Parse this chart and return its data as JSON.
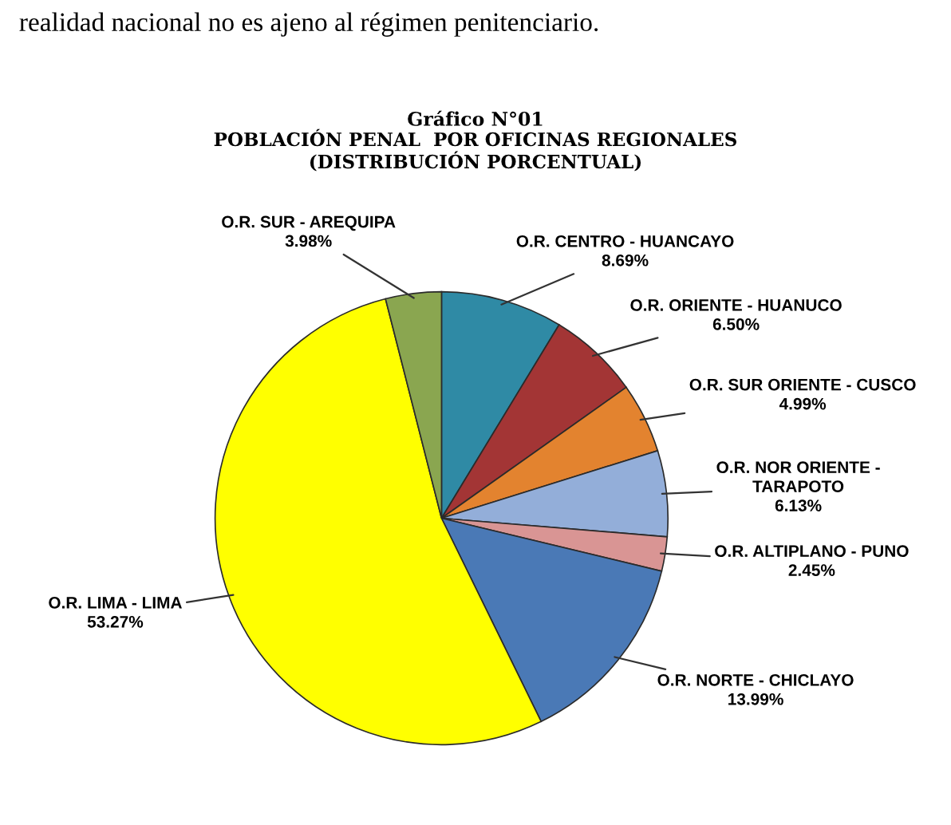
{
  "chart_data": {
    "type": "pie",
    "title": "Gráfico N°01",
    "subtitle": "POBLACIÓN PENAL  POR OFICINAS REGIONALES\n(DISTRIBUCIÓN PORCENTUAL)",
    "annotations": [
      "realidad nacional no es ajeno al régimen penitenciario."
    ],
    "categories": [
      "O.R. CENTRO - HUANCAYO",
      "O.R. ORIENTE - HUANUCO",
      "O.R. SUR ORIENTE - CUSCO",
      "O.R. NOR ORIENTE -\nTARAPOTO",
      "O.R. ALTIPLANO - PUNO",
      "O.R. NORTE - CHICLAYO",
      "O.R. LIMA - LIMA",
      "O.R. SUR - AREQUIPA"
    ],
    "values": [
      8.69,
      6.5,
      4.99,
      6.13,
      2.45,
      13.99,
      53.27,
      3.98
    ],
    "value_labels": [
      "8.69%",
      "6.50%",
      "4.99%",
      "6.13%",
      "2.45%",
      "13.99%",
      "53.27%",
      "3.98%"
    ],
    "colors": [
      "#2f8aa5",
      "#a33535",
      "#e3832f",
      "#93aed9",
      "#d99594",
      "#4a79b6",
      "#ffff00",
      "#8aa650"
    ]
  }
}
